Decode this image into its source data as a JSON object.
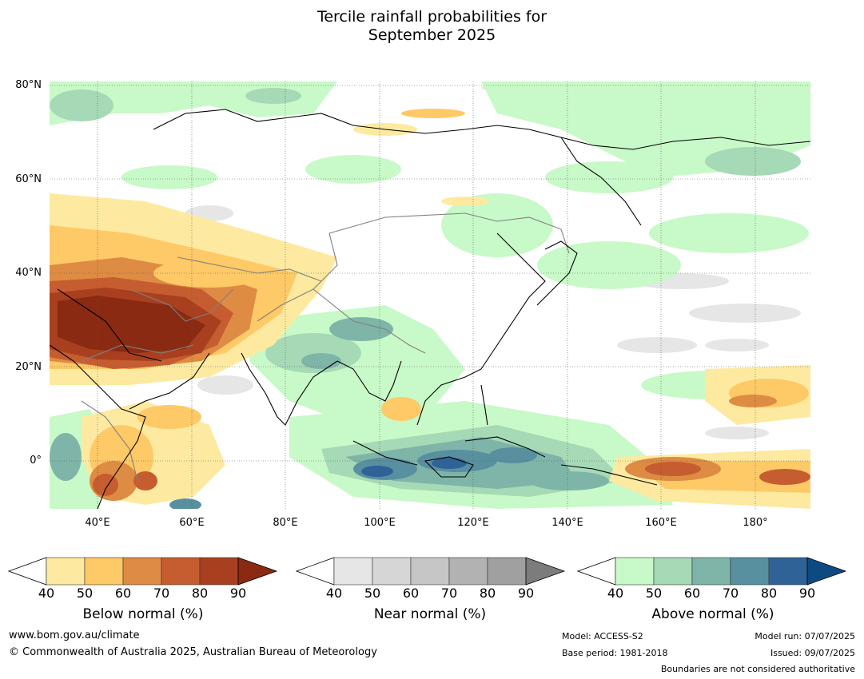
{
  "title": {
    "line1": "Tercile rainfall probabilities for",
    "line2": "September 2025"
  },
  "map": {
    "lat_labels": [
      "80°N",
      "60°N",
      "40°N",
      "20°N",
      "0°"
    ],
    "lon_labels": [
      "40°E",
      "60°E",
      "80°E",
      "100°E",
      "120°E",
      "140°E",
      "160°E",
      "180°"
    ],
    "colors": {
      "ocean": "#ffffff",
      "coast": "#000000",
      "border": "#808080"
    }
  },
  "colorbars": [
    {
      "name": "below",
      "title": "Below normal (%)",
      "ticks": [
        "40",
        "50",
        "60",
        "70",
        "80",
        "90"
      ],
      "colors": [
        "#fdeaa0",
        "#fec967",
        "#de8b43",
        "#c65d30",
        "#a8401f",
        "#8b2a12"
      ]
    },
    {
      "name": "near",
      "title": "Near normal (%)",
      "ticks": [
        "40",
        "50",
        "60",
        "70",
        "80",
        "90"
      ],
      "colors": [
        "#e6e6e6",
        "#d6d6d6",
        "#c6c6c6",
        "#b2b2b2",
        "#a0a0a0",
        "#7c7c7c"
      ]
    },
    {
      "name": "above",
      "title": "Above normal (%)",
      "ticks": [
        "40",
        "50",
        "60",
        "70",
        "80",
        "90"
      ],
      "colors": [
        "#c8f9c8",
        "#a6d9b6",
        "#7fb5a8",
        "#5890a0",
        "#2f6296",
        "#0e4a82"
      ]
    }
  ],
  "footer": {
    "website": "www.bom.gov.au/climate",
    "copyright": "© Commonwealth of Australia 2025, Australian Bureau of Meteorology",
    "model": "Model: ACCESS-S2",
    "base_period": "Base period: 1981-2018",
    "model_run": "Model run: 07/07/2025",
    "issued": "Issued: 09/07/2025",
    "disclaimer": "Boundaries are not considered authoritative"
  }
}
